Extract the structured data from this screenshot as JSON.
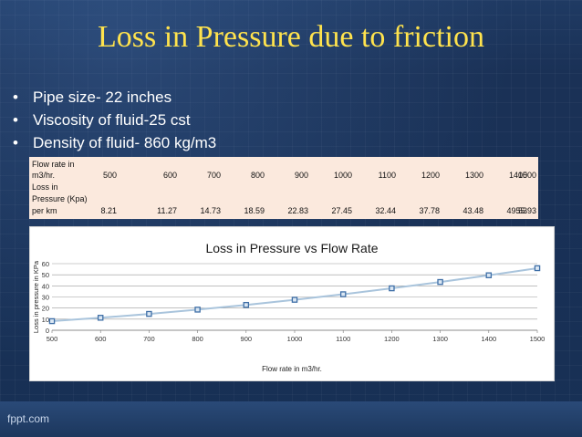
{
  "slide": {
    "title": "Loss in Pressure due to friction",
    "bullets": [
      {
        "marker": "•",
        "text": "Pipe size- 22 inches"
      },
      {
        "marker": "•",
        "text": "Viscosity of fluid-25 cst"
      },
      {
        "marker": "•",
        "text": "Density of fluid- 860 kg/m3"
      }
    ],
    "table": {
      "row1_label_lines": [
        "Flow rate in",
        "m3/hr."
      ],
      "row2_label_lines": [
        "Loss in",
        "Pressure (Kpa)",
        "per km"
      ],
      "flow_rates": [
        "500",
        "600",
        "700",
        "800",
        "900",
        "1000",
        "1100",
        "1200",
        "1300",
        "1400",
        "1500"
      ],
      "losses": [
        "8.21",
        "11.27",
        "14.73",
        "18.59",
        "22.83",
        "27.45",
        "32.44",
        "37.78",
        "43.48",
        "49.53",
        "55.93"
      ]
    },
    "footer": "fppt.com"
  },
  "chart_data": {
    "type": "line",
    "title": "Loss in Pressure vs Flow Rate",
    "xlabel": "Flow rate in m3/hr.",
    "ylabel": "Loss in pressure in KPa",
    "x": [
      500,
      600,
      700,
      800,
      900,
      1000,
      1100,
      1200,
      1300,
      1400,
      1500
    ],
    "series": [
      {
        "values": [
          8.21,
          11.27,
          14.73,
          18.59,
          22.83,
          27.45,
          32.44,
          37.78,
          43.48,
          49.53,
          55.93
        ]
      }
    ],
    "xlim": [
      500,
      1500
    ],
    "ylim": [
      0,
      60
    ],
    "xticks": [
      500,
      600,
      700,
      800,
      900,
      1000,
      1100,
      1200,
      1300,
      1400,
      1500
    ],
    "yticks": [
      0,
      10,
      20,
      30,
      40,
      50,
      60
    ],
    "grid": true,
    "legend": "none",
    "line_color": "#a9c4dc",
    "marker_color": "#3f6fa7"
  }
}
